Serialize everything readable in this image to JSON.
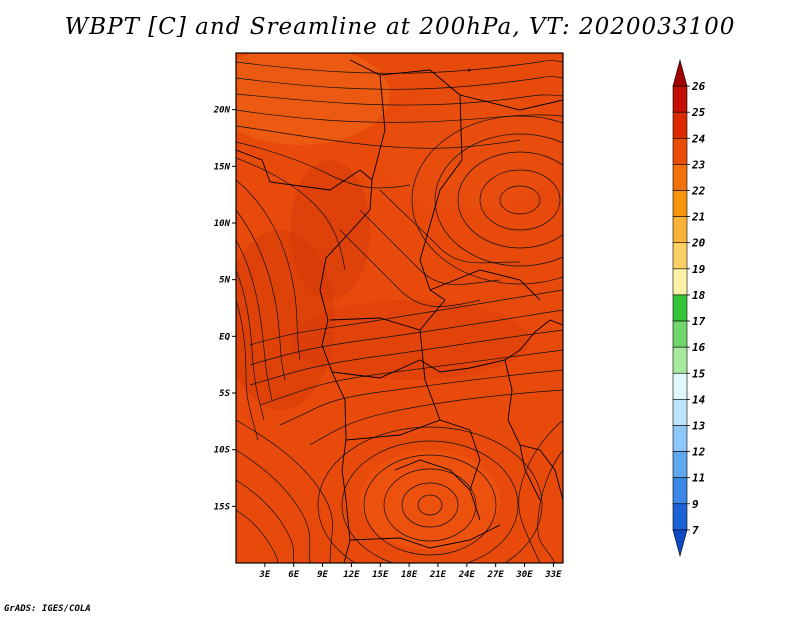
{
  "title": "WBPT [C] and Sreamline at 200hPa, VT: 2020033100",
  "credit": "GrADS: IGES/COLA",
  "map": {
    "lat_ticks": [
      "20N",
      "15N",
      "10N",
      "5N",
      "EQ",
      "5S",
      "10S",
      "15S"
    ],
    "lat_values": [
      20,
      15,
      10,
      5,
      0,
      -5,
      -10,
      -15
    ],
    "lon_ticks": [
      "3E",
      "6E",
      "9E",
      "12E",
      "15E",
      "18E",
      "21E",
      "24E",
      "27E",
      "30E",
      "33E"
    ],
    "lon_values": [
      3,
      6,
      9,
      12,
      15,
      18,
      21,
      24,
      27,
      30,
      33
    ],
    "lat_range": [
      -20,
      25
    ],
    "lon_range": [
      0,
      34
    ],
    "fill_color": "#e84a0c"
  },
  "colorbar": {
    "labels": [
      "26",
      "25",
      "24",
      "23",
      "22",
      "21",
      "20",
      "19",
      "18",
      "17",
      "16",
      "15",
      "14",
      "13",
      "12",
      "11",
      "9",
      "7"
    ],
    "colors": [
      "#a50000",
      "#c20f00",
      "#dc2a00",
      "#ea4b07",
      "#f2700e",
      "#f7950b",
      "#fbb33a",
      "#fcd267",
      "#fff2a8",
      "#35c33a",
      "#6fd86c",
      "#a6eaa0",
      "#dff9ff",
      "#bde5ff",
      "#8dc7f7",
      "#5ea8f0",
      "#3a87e6",
      "#1c63d6",
      "#0f4ac8"
    ]
  }
}
